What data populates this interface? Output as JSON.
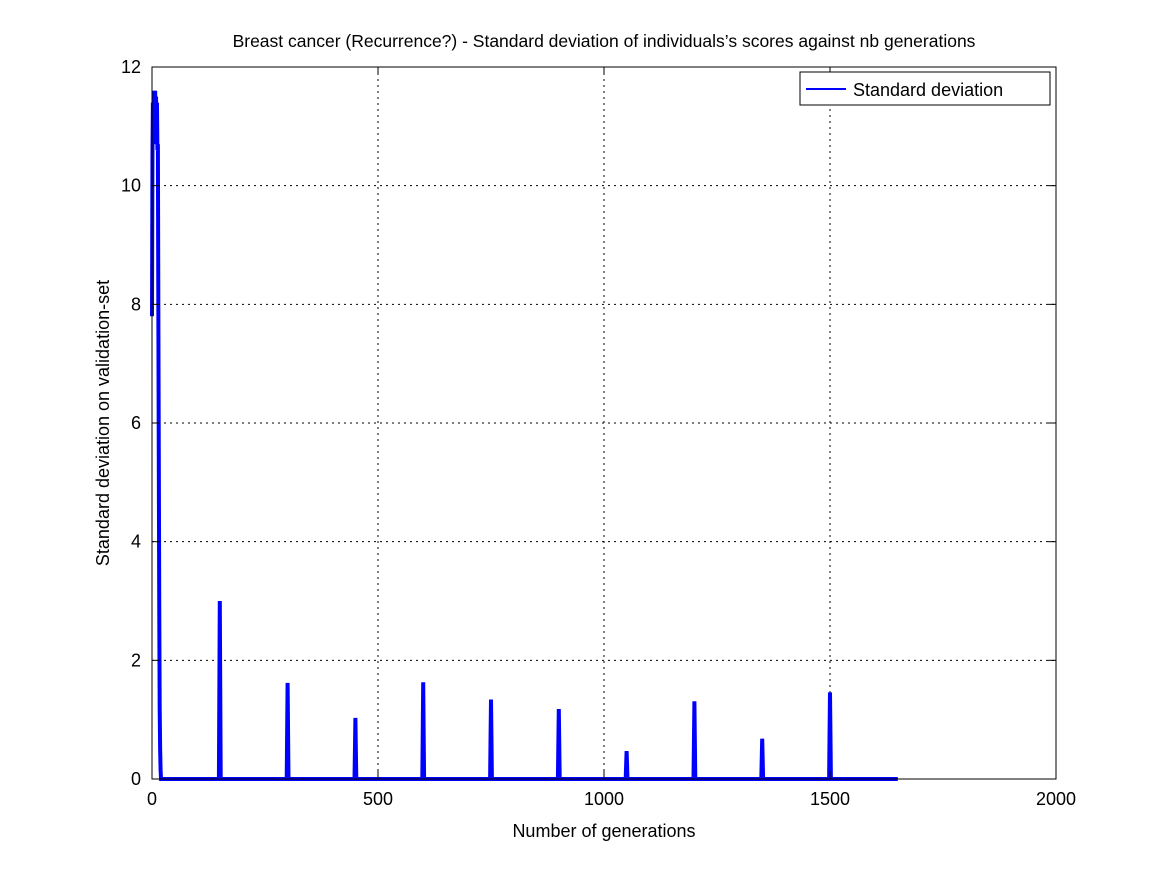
{
  "chart_data": {
    "type": "line",
    "title": "Breast cancer (Recurrence?) - Standard deviation of individuals’s scores against nb generations",
    "xlabel": "Number of generations",
    "ylabel": "Standard deviation on validation-set",
    "xlim": [
      0,
      2000
    ],
    "ylim": [
      0,
      12
    ],
    "xticks": [
      0,
      500,
      1000,
      1500,
      2000
    ],
    "yticks": [
      0,
      2,
      4,
      6,
      8,
      10,
      12
    ],
    "xtick_labels": [
      "0",
      "500",
      "1000",
      "1500",
      "2000"
    ],
    "ytick_labels": [
      "0",
      "2",
      "4",
      "6",
      "8",
      "10",
      "12"
    ],
    "grid": true,
    "legend_position": "top-right",
    "series": [
      {
        "name": "Standard deviation",
        "color": "#0000ff",
        "x": [
          0,
          1,
          2,
          3,
          4,
          5,
          6,
          7,
          8,
          9,
          10,
          11,
          12,
          13,
          14,
          15,
          16,
          17,
          18,
          19,
          20,
          22,
          24,
          148,
          149,
          150,
          151,
          152,
          298,
          299,
          300,
          301,
          302,
          448,
          449,
          450,
          451,
          452,
          598,
          599,
          600,
          601,
          602,
          748,
          749,
          750,
          751,
          752,
          898,
          899,
          900,
          901,
          902,
          1048,
          1049,
          1050,
          1051,
          1052,
          1198,
          1199,
          1200,
          1201,
          1202,
          1348,
          1349,
          1350,
          1351,
          1352,
          1498,
          1499,
          1500,
          1501,
          1502,
          1650
        ],
        "y": [
          7.8,
          10.5,
          11.4,
          11.2,
          10.7,
          11.6,
          11.3,
          11.6,
          11.0,
          11.5,
          10.8,
          11.4,
          10.6,
          10.7,
          8.0,
          5.5,
          3.0,
          1.2,
          0.5,
          0.15,
          0.0,
          0.0,
          0.0,
          0.0,
          1.5,
          3.0,
          1.5,
          0.0,
          0.0,
          0.8,
          1.62,
          0.8,
          0.0,
          0.0,
          0.5,
          1.03,
          0.5,
          0.0,
          0.0,
          0.8,
          1.63,
          0.8,
          0.0,
          0.0,
          0.7,
          1.34,
          0.7,
          0.0,
          0.0,
          0.6,
          1.18,
          0.6,
          0.0,
          0.0,
          0.25,
          0.47,
          0.25,
          0.0,
          0.0,
          0.65,
          1.31,
          0.65,
          0.0,
          0.0,
          0.35,
          0.68,
          0.35,
          0.0,
          0.0,
          0.75,
          1.46,
          0.75,
          0.0,
          0.0
        ]
      }
    ]
  }
}
